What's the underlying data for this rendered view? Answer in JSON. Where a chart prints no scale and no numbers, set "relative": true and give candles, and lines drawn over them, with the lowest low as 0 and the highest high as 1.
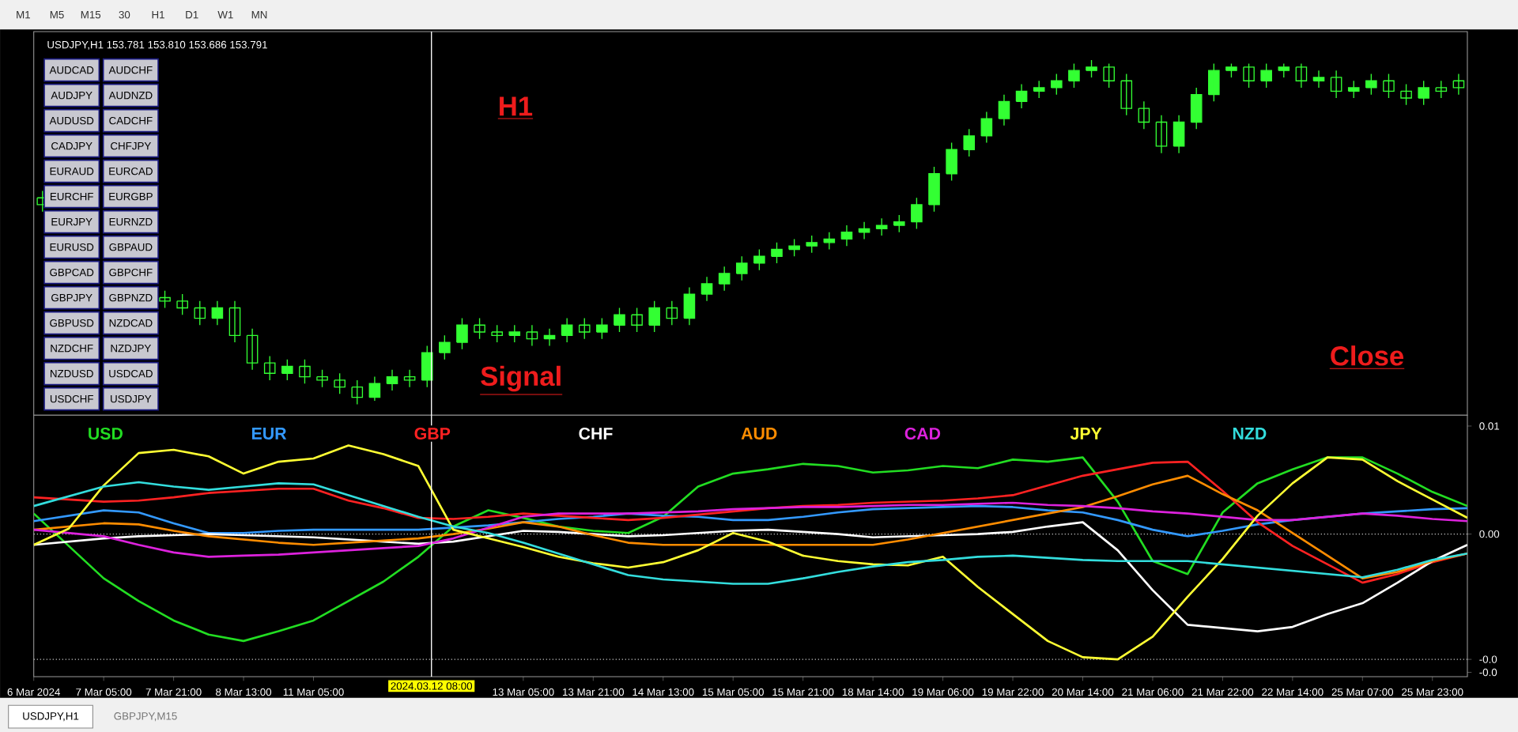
{
  "chart_data": [
    {
      "type": "other",
      "annotations": [
        "M1",
        "M5",
        "M15",
        "30",
        "H1",
        "D1",
        "W1",
        "MN"
      ]
    },
    {
      "type": "other",
      "annotations": [
        "AUDCAD",
        "AUDCHF",
        "AUDJPY",
        "AUDNZD",
        "AUDUSD",
        "CADCHF",
        "CADJPY",
        "CHFJPY",
        "EURAUD",
        "EURCAD",
        "EURCHF",
        "EURGBP",
        "EURJPY",
        "EURNZD",
        "EURUSD",
        "GBPAUD",
        "GBPCAD",
        "GBPCHF",
        "GBPJPY",
        "GBPNZD",
        "GBPUSD",
        "NZDCAD",
        "NZDCHF",
        "NZDJPY",
        "NZDUSD",
        "USDCAD",
        "USDCHF",
        "USDJPY"
      ]
    },
    {
      "type": "candlestick",
      "title": "USDJPY,H1 153.781 153.810 153.686 153.791",
      "relative": true,
      "color": "#33ff33",
      "categories": [
        null,
        null,
        null,
        null,
        null,
        null,
        null,
        null,
        null,
        null,
        null,
        null,
        null,
        null,
        null,
        null,
        null,
        null,
        null,
        null,
        null,
        null,
        null,
        null,
        null,
        null,
        null,
        null,
        null,
        null,
        null,
        null,
        null,
        null,
        null,
        null,
        null,
        null,
        null,
        null,
        null,
        null,
        null,
        null,
        null,
        null,
        null,
        null,
        null,
        null,
        null,
        null,
        null,
        null,
        null,
        null,
        null,
        null,
        null,
        null,
        null,
        null,
        null,
        null,
        null,
        null,
        null,
        null,
        null,
        null,
        null,
        null,
        null,
        null,
        null,
        null,
        null,
        null,
        null,
        null,
        null,
        null
      ],
      "ohlc": [
        [
          0.6,
          0.62,
          0.56,
          0.58
        ],
        null,
        null,
        null,
        null,
        null,
        null,
        [
          0.31,
          0.33,
          0.28,
          0.3
        ],
        [
          0.3,
          0.32,
          0.26,
          0.28
        ],
        [
          0.28,
          0.3,
          0.23,
          0.25
        ],
        [
          0.25,
          0.3,
          0.23,
          0.28
        ],
        [
          0.28,
          0.3,
          0.18,
          0.2
        ],
        [
          0.2,
          0.22,
          0.1,
          0.12
        ],
        [
          0.12,
          0.14,
          0.07,
          0.09
        ],
        [
          0.09,
          0.13,
          0.07,
          0.11
        ],
        [
          0.11,
          0.13,
          0.06,
          0.08
        ],
        [
          0.08,
          0.1,
          0.05,
          0.07
        ],
        [
          0.07,
          0.09,
          0.03,
          0.05
        ],
        [
          0.05,
          0.07,
          0,
          0.02
        ],
        [
          0.02,
          0.08,
          0.01,
          0.06
        ],
        [
          0.06,
          0.1,
          0.04,
          0.08
        ],
        [
          0.08,
          0.1,
          0.05,
          0.07
        ],
        [
          0.07,
          0.17,
          0.05,
          0.15
        ],
        [
          0.15,
          0.2,
          0.13,
          0.18
        ],
        [
          0.18,
          0.25,
          0.16,
          0.23
        ],
        [
          0.23,
          0.25,
          0.19,
          0.21
        ],
        [
          0.21,
          0.23,
          0.18,
          0.2
        ],
        [
          0.2,
          0.23,
          0.18,
          0.21
        ],
        [
          0.21,
          0.23,
          0.17,
          0.19
        ],
        [
          0.19,
          0.22,
          0.17,
          0.2
        ],
        [
          0.2,
          0.25,
          0.18,
          0.23
        ],
        [
          0.23,
          0.25,
          0.19,
          0.21
        ],
        [
          0.21,
          0.25,
          0.19,
          0.23
        ],
        [
          0.23,
          0.28,
          0.21,
          0.26
        ],
        [
          0.26,
          0.28,
          0.21,
          0.23
        ],
        [
          0.23,
          0.3,
          0.21,
          0.28
        ],
        [
          0.28,
          0.3,
          0.23,
          0.25
        ],
        [
          0.25,
          0.34,
          0.23,
          0.32
        ],
        [
          0.32,
          0.37,
          0.3,
          0.35
        ],
        [
          0.35,
          0.4,
          0.33,
          0.38
        ],
        [
          0.38,
          0.43,
          0.36,
          0.41
        ],
        [
          0.41,
          0.45,
          0.39,
          0.43
        ],
        [
          0.43,
          0.47,
          0.41,
          0.45
        ],
        [
          0.45,
          0.48,
          0.43,
          0.46
        ],
        [
          0.46,
          0.49,
          0.44,
          0.47
        ],
        [
          0.47,
          0.5,
          0.45,
          0.48
        ],
        [
          0.48,
          0.52,
          0.46,
          0.5
        ],
        [
          0.5,
          0.53,
          0.48,
          0.51
        ],
        [
          0.51,
          0.54,
          0.49,
          0.52
        ],
        [
          0.52,
          0.55,
          0.5,
          0.53
        ],
        [
          0.53,
          0.6,
          0.51,
          0.58
        ],
        [
          0.58,
          0.69,
          0.56,
          0.67
        ],
        [
          0.67,
          0.76,
          0.65,
          0.74
        ],
        [
          0.74,
          0.8,
          0.72,
          0.78
        ],
        [
          0.78,
          0.85,
          0.76,
          0.83
        ],
        [
          0.83,
          0.9,
          0.81,
          0.88
        ],
        [
          0.88,
          0.93,
          0.86,
          0.91
        ],
        [
          0.91,
          0.94,
          0.89,
          0.92
        ],
        [
          0.92,
          0.96,
          0.9,
          0.94
        ],
        [
          0.94,
          0.99,
          0.92,
          0.97
        ],
        [
          0.97,
          1,
          0.95,
          0.98
        ],
        [
          0.98,
          0.99,
          0.92,
          0.94
        ],
        [
          0.94,
          0.96,
          0.84,
          0.86
        ],
        [
          0.86,
          0.88,
          0.8,
          0.82
        ],
        [
          0.82,
          0.84,
          0.73,
          0.75
        ],
        [
          0.75,
          0.84,
          0.73,
          0.82
        ],
        [
          0.82,
          0.92,
          0.8,
          0.9
        ],
        [
          0.9,
          0.99,
          0.88,
          0.97
        ],
        [
          0.97,
          0.99,
          0.95,
          0.98
        ],
        [
          0.98,
          0.99,
          0.92,
          0.94
        ],
        [
          0.94,
          0.99,
          0.92,
          0.97
        ],
        [
          0.97,
          0.99,
          0.95,
          0.98
        ],
        [
          0.98,
          0.99,
          0.92,
          0.94
        ],
        [
          0.94,
          0.97,
          0.92,
          0.95
        ],
        [
          0.95,
          0.97,
          0.89,
          0.91
        ],
        [
          0.91,
          0.94,
          0.89,
          0.92
        ],
        [
          0.92,
          0.96,
          0.9,
          0.94
        ],
        [
          0.94,
          0.96,
          0.89,
          0.91
        ],
        [
          0.91,
          0.93,
          0.87,
          0.89
        ],
        [
          0.89,
          0.94,
          0.87,
          0.92
        ],
        [
          0.92,
          0.94,
          0.89,
          0.91
        ],
        [
          0.94,
          0.96,
          0.9,
          0.92
        ]
      ],
      "annotations": [
        "H1",
        "Signal",
        "Close"
      ]
    },
    {
      "type": "line",
      "legend": "top",
      "ylim": [
        -0.0132,
        0.011
      ],
      "categories": [
        "6 Mar 2024",
        null,
        "7 Mar 05:00",
        null,
        "7 Mar 21:00",
        null,
        "8 Mar 13:00",
        null,
        "11 Mar 05:00",
        null,
        null,
        null,
        null,
        null,
        "13 Mar 05:00",
        null,
        "13 Mar 21:00",
        null,
        "14 Mar 13:00",
        null,
        "15 Mar 05:00",
        null,
        "15 Mar 21:00",
        null,
        "18 Mar 14:00",
        null,
        "19 Mar 06:00",
        null,
        "19 Mar 22:00",
        null,
        "20 Mar 14:00",
        null,
        "21 Mar 06:00",
        null,
        "21 Mar 22:00",
        null,
        "22 Mar 14:00",
        null,
        "25 Mar 07:00",
        null,
        "25 Mar 23:00",
        null
      ],
      "yticks": [
        {
          "value": 0.01,
          "label": "0.01"
        },
        {
          "value": 0,
          "label": "0.00"
        },
        {
          "value": -0.0116,
          "label": "-0.0"
        },
        {
          "value": -0.0128,
          "label": "-0.0"
        }
      ],
      "ref_lines": [
        {
          "axis": "y",
          "value": 0,
          "color": "#bbbbbb",
          "line_style": "dotted"
        },
        {
          "axis": "y",
          "value": -0.0116,
          "color": "#bbbbbb",
          "line_style": "dotted"
        }
      ],
      "annotations": [
        "2024.03.12 08:00"
      ],
      "series": [
        {
          "name": "USD",
          "color": "#22dd22",
          "values": [
            0.0019,
            -0.0011,
            -0.0041,
            -0.0062,
            -0.008,
            -0.0093,
            -0.0099,
            -0.009,
            -0.008,
            -0.0062,
            -0.0044,
            -0.0021,
            0.0007,
            0.0022,
            0.0015,
            0.0007,
            0.0003,
            0.0001,
            0.0016,
            0.0044,
            0.0056,
            0.006,
            0.0065,
            0.0063,
            0.0057,
            0.0059,
            0.0063,
            0.0061,
            0.0069,
            0.0067,
            0.0071,
            0.003,
            -0.0025,
            -0.0037,
            0.002,
            0.0047,
            0.006,
            0.0071,
            0.0071,
            0.0056,
            0.0039,
            0.0026
          ]
        },
        {
          "name": "EUR",
          "color": "#3399ff",
          "values": [
            0.0012,
            0.0017,
            0.0022,
            0.002,
            0.001,
            0.0001,
            0.0001,
            0.0003,
            0.0004,
            0.0004,
            0.0004,
            0.0004,
            0.0006,
            0.0008,
            0.0011,
            0.0014,
            0.0016,
            0.0019,
            0.0017,
            0.0016,
            0.0013,
            0.0013,
            0.0016,
            0.002,
            0.0023,
            0.0024,
            0.0025,
            0.0026,
            0.0025,
            0.0022,
            0.002,
            0.0013,
            0.0004,
            -0.0002,
            0.0003,
            0.0009,
            0.0013,
            0.0016,
            0.0019,
            0.0021,
            0.0023,
            0.0024
          ]
        },
        {
          "name": "GBP",
          "color": "#ff2222",
          "values": [
            0.0034,
            0.0032,
            0.003,
            0.0031,
            0.0034,
            0.0038,
            0.004,
            0.0042,
            0.0042,
            0.0031,
            0.0024,
            0.0015,
            0.0014,
            0.0016,
            0.0019,
            0.0017,
            0.0015,
            0.0013,
            0.0015,
            0.0018,
            0.0021,
            0.0024,
            0.0026,
            0.0027,
            0.0029,
            0.003,
            0.0031,
            0.0033,
            0.0036,
            0.0045,
            0.0054,
            0.006,
            0.0066,
            0.0067,
            0.004,
            0.0011,
            -0.0011,
            -0.0028,
            -0.0045,
            -0.0037,
            -0.0026,
            -0.0018
          ]
        },
        {
          "name": "CHF",
          "color": "#ffffff",
          "values": [
            -0.001,
            -0.0007,
            -0.0004,
            -0.0002,
            -0.0001,
            0,
            -0.0001,
            -0.0002,
            -0.0003,
            -0.0005,
            -0.0007,
            -0.0009,
            -0.0007,
            -0.0002,
            0.0003,
            0.0002,
            0,
            -0.0002,
            -0.0001,
            0.0001,
            0.0003,
            0.0004,
            0.0002,
            0,
            -0.0003,
            -0.0002,
            -0.0001,
            0,
            0.0002,
            0.0007,
            0.0011,
            -0.0015,
            -0.0052,
            -0.0084,
            -0.0087,
            -0.009,
            -0.0086,
            -0.0074,
            -0.0064,
            -0.0045,
            -0.0025,
            -0.001
          ]
        },
        {
          "name": "AUD",
          "color": "#ff8c00",
          "values": [
            0.0004,
            0.0007,
            0.001,
            0.0009,
            0.0003,
            -0.0002,
            -0.0005,
            -0.0008,
            -0.001,
            -0.0008,
            -0.0006,
            -0.0004,
            0,
            0.0005,
            0.0011,
            0.0007,
            -0.0001,
            -0.0008,
            -0.001,
            -0.001,
            -0.001,
            -0.001,
            -0.001,
            -0.001,
            -0.001,
            -0.0005,
            0.0001,
            0.0007,
            0.0013,
            0.0019,
            0.0025,
            0.0035,
            0.0046,
            0.0054,
            0.0037,
            0.0022,
            0.0001,
            -0.002,
            -0.0041,
            -0.0035,
            -0.0025,
            -0.0018
          ]
        },
        {
          "name": "CAD",
          "color": "#dd22dd",
          "values": [
            0.0004,
            0.0001,
            -0.0002,
            -0.001,
            -0.0017,
            -0.0021,
            -0.002,
            -0.0019,
            -0.0017,
            -0.0015,
            -0.0013,
            -0.0011,
            -0.0004,
            0.0006,
            0.0016,
            0.0019,
            0.0019,
            0.0019,
            0.002,
            0.0021,
            0.0023,
            0.0024,
            0.0025,
            0.0025,
            0.0026,
            0.0027,
            0.0027,
            0.0028,
            0.0029,
            0.0027,
            0.0026,
            0.0024,
            0.0021,
            0.0019,
            0.0016,
            0.0013,
            0.0013,
            0.0016,
            0.0019,
            0.0017,
            0.0014,
            0.0012
          ]
        },
        {
          "name": "JPY",
          "color": "#ffff33",
          "values": [
            -0.001,
            0.0005,
            0.0045,
            0.0075,
            0.0078,
            0.0072,
            0.0056,
            0.0067,
            0.007,
            0.0082,
            0.0074,
            0.0063,
            0.0004,
            -0.0004,
            -0.0012,
            -0.0021,
            -0.0027,
            -0.0031,
            -0.0026,
            -0.0015,
            0.0001,
            -0.0007,
            -0.002,
            -0.0025,
            -0.0028,
            -0.0029,
            -0.0021,
            -0.0049,
            -0.0074,
            -0.0099,
            -0.0114,
            -0.0116,
            -0.0095,
            -0.0058,
            -0.0023,
            0.0017,
            0.0047,
            0.0071,
            0.0069,
            0.0049,
            0.0032,
            0.0015
          ]
        },
        {
          "name": "NZD",
          "color": "#33dddd",
          "values": [
            0.0026,
            0.0035,
            0.0044,
            0.0048,
            0.0044,
            0.0041,
            0.0044,
            0.0047,
            0.0046,
            0.0036,
            0.0026,
            0.0016,
            0.0007,
            0.0001,
            -0.0008,
            -0.0018,
            -0.0028,
            -0.0038,
            -0.0042,
            -0.0044,
            -0.0046,
            -0.0046,
            -0.0041,
            -0.0035,
            -0.003,
            -0.0026,
            -0.0024,
            -0.0021,
            -0.002,
            -0.0022,
            -0.0024,
            -0.0025,
            -0.0025,
            -0.0025,
            -0.0028,
            -0.0031,
            -0.0034,
            -0.0037,
            -0.004,
            -0.0033,
            -0.0024,
            -0.0018
          ]
        }
      ]
    },
    {
      "type": "other",
      "annotations": [
        "USDJPY,H1",
        "GBPJPY,M15"
      ]
    }
  ]
}
